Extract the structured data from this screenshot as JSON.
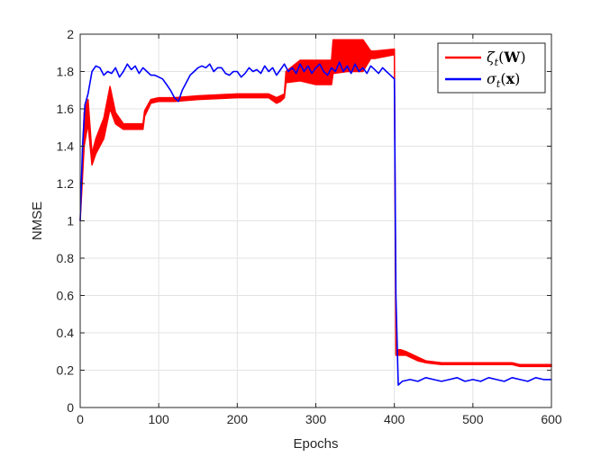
{
  "chart_data": {
    "type": "line",
    "xlabel": "Epochs",
    "ylabel": "NMSE",
    "xlim": [
      0,
      600
    ],
    "ylim": [
      0,
      2
    ],
    "xticks": [
      0,
      100,
      200,
      300,
      400,
      500,
      600
    ],
    "yticks": [
      0,
      0.2,
      0.4,
      0.6,
      0.8,
      1,
      1.2,
      1.4,
      1.6,
      1.8,
      2
    ],
    "x_tick_labels": [
      "0",
      "100",
      "200",
      "300",
      "400",
      "500",
      "600"
    ],
    "y_tick_labels": [
      "0",
      "0.2",
      "0.4",
      "0.6",
      "0.8",
      "1",
      "1.2",
      "1.4",
      "1.6",
      "1.8",
      "2"
    ],
    "grid": true,
    "legend_position": "top-right",
    "series": [
      {
        "name": "ζt(W)",
        "legend": {
          "base": "ζ",
          "sub": "t",
          "arg": "W",
          "arg_bold": true
        },
        "color": "#ff0000",
        "band": true,
        "x": [
          0,
          5,
          10,
          15,
          20,
          30,
          38,
          45,
          55,
          65,
          80,
          82,
          90,
          100,
          120,
          150,
          200,
          240,
          250,
          255,
          260,
          262,
          280,
          300,
          320,
          322,
          340,
          360,
          370,
          375,
          400,
          402,
          408,
          415,
          430,
          440,
          460,
          500,
          550,
          560,
          600
        ],
        "lower": [
          1.0,
          1.4,
          1.52,
          1.3,
          1.36,
          1.44,
          1.6,
          1.52,
          1.49,
          1.49,
          1.49,
          1.56,
          1.63,
          1.64,
          1.64,
          1.65,
          1.66,
          1.66,
          1.63,
          1.64,
          1.66,
          1.74,
          1.75,
          1.73,
          1.73,
          1.79,
          1.8,
          1.8,
          1.87,
          1.87,
          1.89,
          0.28,
          0.28,
          0.28,
          0.25,
          0.24,
          0.23,
          0.23,
          0.23,
          0.22,
          0.22
        ],
        "upper": [
          1.0,
          1.58,
          1.65,
          1.36,
          1.44,
          1.55,
          1.72,
          1.58,
          1.52,
          1.52,
          1.52,
          1.59,
          1.65,
          1.66,
          1.66,
          1.67,
          1.68,
          1.68,
          1.66,
          1.67,
          1.68,
          1.8,
          1.86,
          1.86,
          1.86,
          1.97,
          1.97,
          1.97,
          1.91,
          1.91,
          1.92,
          0.31,
          0.31,
          0.3,
          0.27,
          0.25,
          0.24,
          0.24,
          0.24,
          0.23,
          0.23
        ]
      },
      {
        "name": "σt(x)",
        "legend": {
          "base": "σ",
          "sub": "t",
          "arg": "x",
          "arg_bold": true
        },
        "color": "#0000ff",
        "band": false,
        "x": [
          0,
          3,
          6,
          10,
          15,
          20,
          25,
          30,
          35,
          40,
          45,
          50,
          55,
          60,
          65,
          70,
          75,
          80,
          85,
          90,
          95,
          100,
          105,
          110,
          115,
          120,
          125,
          130,
          135,
          140,
          145,
          150,
          155,
          160,
          165,
          170,
          175,
          180,
          185,
          190,
          195,
          200,
          205,
          210,
          215,
          220,
          225,
          230,
          235,
          240,
          245,
          250,
          255,
          260,
          265,
          270,
          275,
          280,
          285,
          290,
          295,
          300,
          305,
          310,
          315,
          320,
          325,
          330,
          335,
          340,
          345,
          350,
          355,
          360,
          365,
          370,
          375,
          380,
          385,
          390,
          395,
          400,
          402,
          405,
          410,
          420,
          430,
          440,
          450,
          460,
          470,
          480,
          490,
          500,
          510,
          520,
          530,
          540,
          550,
          560,
          570,
          580,
          590,
          600
        ],
        "y": [
          1.0,
          1.4,
          1.62,
          1.68,
          1.8,
          1.83,
          1.82,
          1.78,
          1.8,
          1.79,
          1.82,
          1.77,
          1.8,
          1.84,
          1.81,
          1.83,
          1.79,
          1.82,
          1.8,
          1.78,
          1.78,
          1.77,
          1.76,
          1.73,
          1.7,
          1.66,
          1.64,
          1.7,
          1.74,
          1.78,
          1.8,
          1.82,
          1.83,
          1.82,
          1.84,
          1.8,
          1.82,
          1.82,
          1.79,
          1.78,
          1.8,
          1.8,
          1.77,
          1.79,
          1.82,
          1.8,
          1.81,
          1.79,
          1.83,
          1.8,
          1.82,
          1.78,
          1.81,
          1.84,
          1.8,
          1.82,
          1.79,
          1.84,
          1.8,
          1.83,
          1.79,
          1.82,
          1.84,
          1.8,
          1.78,
          1.82,
          1.8,
          1.85,
          1.8,
          1.83,
          1.79,
          1.84,
          1.8,
          1.82,
          1.79,
          1.83,
          1.81,
          1.79,
          1.82,
          1.8,
          1.78,
          1.76,
          0.6,
          0.12,
          0.14,
          0.15,
          0.14,
          0.16,
          0.15,
          0.14,
          0.15,
          0.16,
          0.14,
          0.15,
          0.14,
          0.16,
          0.15,
          0.14,
          0.16,
          0.15,
          0.14,
          0.16,
          0.15,
          0.15
        ]
      }
    ]
  }
}
